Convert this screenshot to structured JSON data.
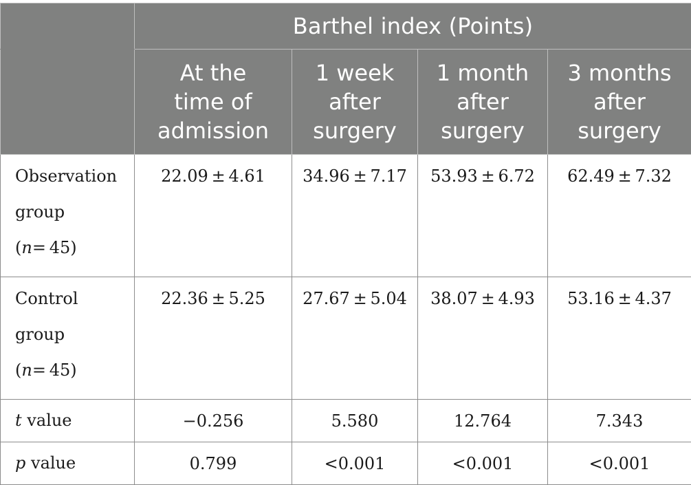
{
  "header": {
    "group_title": "Barthel index (Points)",
    "columns": [
      "At the time of admission",
      "1 week after surgery",
      "1 month after surgery",
      "3 months after surgery"
    ],
    "column_lines": [
      [
        "At the",
        "time of",
        "admission"
      ],
      [
        "1 week",
        "after",
        "surgery"
      ],
      [
        "1 month",
        "after",
        "surgery"
      ],
      [
        "3 months",
        "after",
        "surgery"
      ]
    ]
  },
  "rows": [
    {
      "label_lines": [
        "Observation",
        "group"
      ],
      "n_symbol": "n",
      "n_value": "= 45",
      "values": [
        "22.09 ± 4.61",
        "34.96 ± 7.17",
        "53.93 ± 6.72",
        "62.49 ± 7.32"
      ]
    },
    {
      "label_lines": [
        "Control",
        "group"
      ],
      "n_symbol": "n",
      "n_value": "= 45",
      "values": [
        "22.36 ± 5.25",
        "27.67 ± 5.04",
        "38.07 ± 4.93",
        "53.16 ± 4.37"
      ]
    },
    {
      "label_symbol": "t",
      "label_text": " value",
      "values": [
        "−0.256",
        "5.580",
        "12.764",
        "7.343"
      ]
    },
    {
      "label_symbol": "p",
      "label_text": " value",
      "values": [
        "0.799",
        "<0.001",
        "<0.001",
        "<0.001"
      ]
    }
  ]
}
